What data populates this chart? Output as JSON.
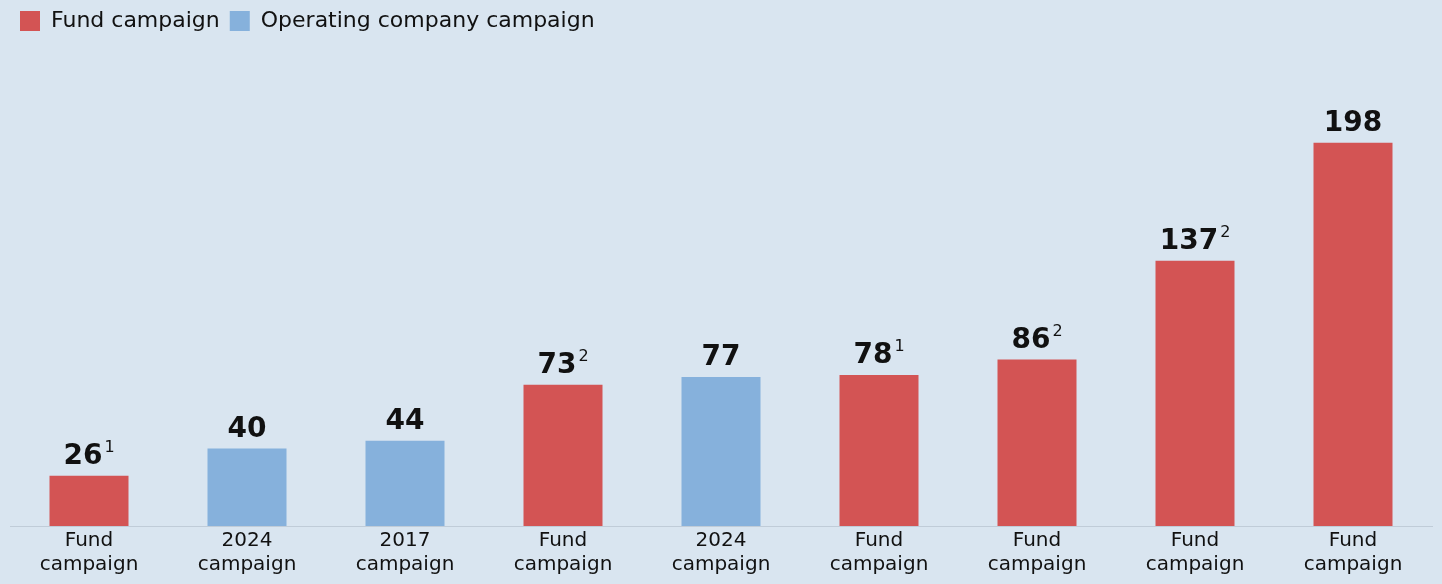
{
  "chart_data": {
    "type": "bar",
    "categories": [
      "Fund campaign",
      "2024 campaign",
      "2017 campaign",
      "Fund campaign",
      "2024 campaign",
      "Fund campaign",
      "Fund campaign",
      "Fund campaign",
      "Fund campaign"
    ],
    "series": [
      {
        "name": "Fund campaign",
        "color": "#d35454",
        "values": [
          26,
          null,
          null,
          73,
          null,
          78,
          86,
          137,
          198
        ],
        "value_labels": [
          "26$^{1}$",
          null,
          null,
          "73$^{2}$",
          null,
          "78$^{1}$",
          "86$^{2}$",
          "137$^{2}$",
          "198"
        ]
      },
      {
        "name": "Operating company campaign",
        "color": "#86b1dc",
        "values": [
          null,
          40,
          44,
          null,
          77,
          null,
          null,
          null,
          null
        ],
        "value_labels": [
          null,
          "40",
          "44",
          null,
          "77",
          null,
          null,
          null,
          null
        ]
      }
    ],
    "legend": "top left",
    "tick_labels": "x",
    "grid": false
  }
}
